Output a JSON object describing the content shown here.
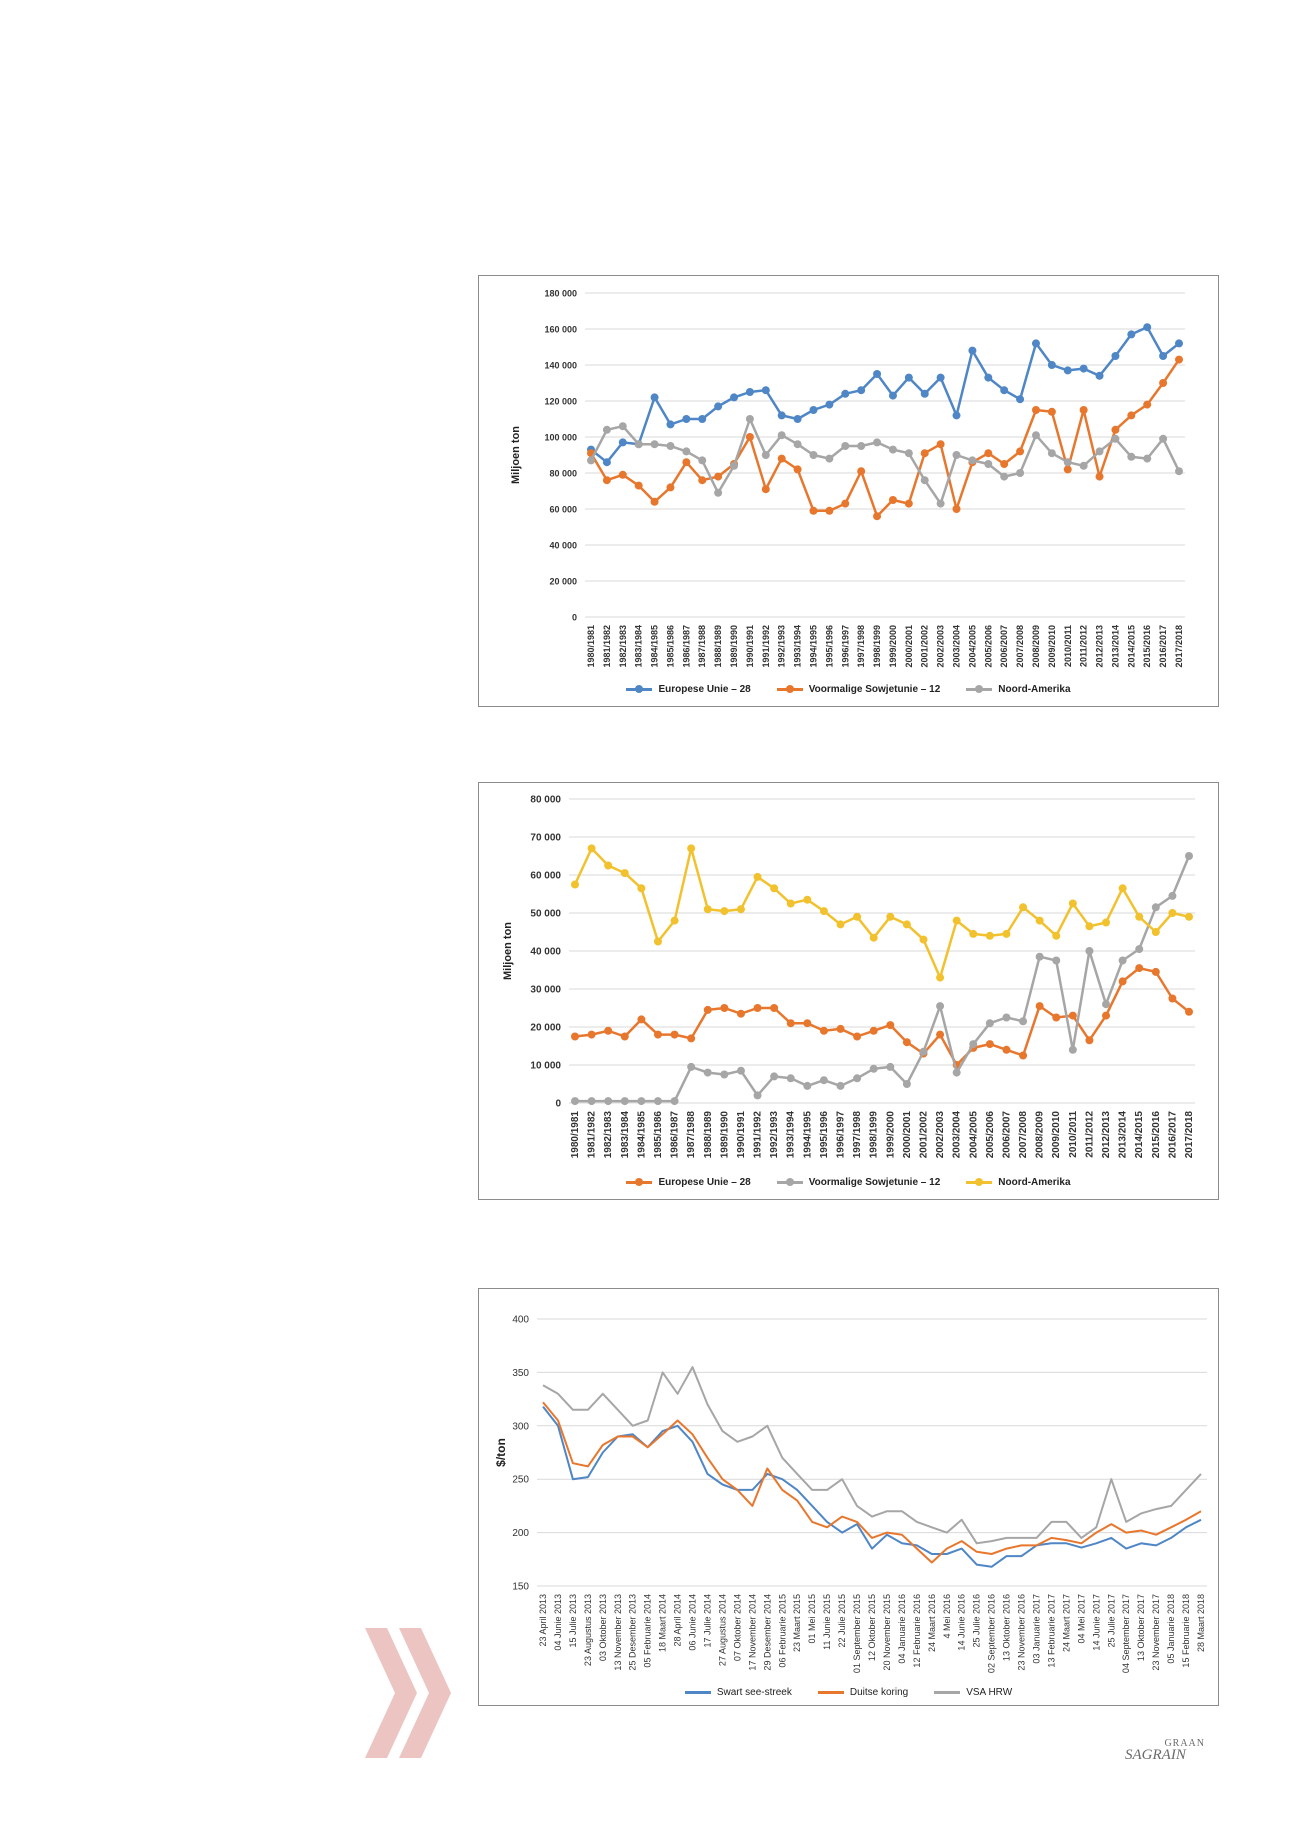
{
  "colors": {
    "blue": "#4f86c6",
    "orange": "#e8772e",
    "gray": "#a6a6a6",
    "yellow": "#f2c12e",
    "grid": "#d9d9d9",
    "chevron": "#ecc5c3"
  },
  "logo": {
    "top": "GRAAN",
    "bottom": "SAGRAIN"
  },
  "chart_data": [
    {
      "type": "line",
      "ylabel": "Miljoen ton",
      "ylim": [
        0,
        180000
      ],
      "yticks": [
        "0",
        "20 000",
        "40 000",
        "60 000",
        "80 000",
        "100 000",
        "120 000",
        "140 000",
        "160 000",
        "180 000"
      ],
      "grid": true,
      "legend_position": "bottom",
      "categories": [
        "1980/1981",
        "1981/1982",
        "1982/1983",
        "1983/1984",
        "1984/1985",
        "1985/1986",
        "1986/1987",
        "1987/1988",
        "1988/1989",
        "1989/1990",
        "1990/1991",
        "1991/1992",
        "1992/1993",
        "1993/1994",
        "1994/1995",
        "1995/1996",
        "1996/1997",
        "1997/1998",
        "1998/1999",
        "1999/2000",
        "2000/2001",
        "2001/2002",
        "2002/2003",
        "2003/2004",
        "2004/2005",
        "2005/2006",
        "2006/2007",
        "2007/2008",
        "2008/2009",
        "2009/2010",
        "2010/2011",
        "2011/2012",
        "2012/2013",
        "2013/2014",
        "2014/2015",
        "2015/2016",
        "2016/2017",
        "2017/2018"
      ],
      "series": [
        {
          "name": "Europese Unie – 28",
          "color": "blue",
          "values": [
            93000,
            86000,
            97000,
            96000,
            122000,
            107000,
            110000,
            110000,
            117000,
            122000,
            125000,
            126000,
            112000,
            110000,
            115000,
            118000,
            124000,
            126000,
            135000,
            123000,
            133000,
            124000,
            133000,
            112000,
            148000,
            133000,
            126000,
            121000,
            152000,
            140000,
            137000,
            138000,
            134000,
            145000,
            157000,
            161000,
            145000,
            152000
          ]
        },
        {
          "name": "Voormalige Sowjetunie – 12",
          "color": "orange",
          "values": [
            91000,
            76000,
            79000,
            73000,
            64000,
            72000,
            86000,
            76000,
            78000,
            85000,
            100000,
            71000,
            88000,
            82000,
            59000,
            59000,
            63000,
            81000,
            56000,
            65000,
            63000,
            91000,
            96000,
            60000,
            86000,
            91000,
            85000,
            92000,
            115000,
            114000,
            82000,
            115000,
            78000,
            104000,
            112000,
            118000,
            130000,
            143000
          ]
        },
        {
          "name": "Noord-Amerika",
          "color": "gray",
          "values": [
            87000,
            104000,
            106000,
            96000,
            96000,
            95000,
            92000,
            87000,
            69000,
            84000,
            110000,
            90000,
            101000,
            96000,
            90000,
            88000,
            95000,
            95000,
            97000,
            93000,
            91000,
            76000,
            63000,
            90000,
            87000,
            85000,
            78000,
            80000,
            101000,
            91000,
            86000,
            84000,
            92000,
            99000,
            89000,
            88000,
            99000,
            81000
          ]
        }
      ]
    },
    {
      "type": "line",
      "ylabel": "Miljoen ton",
      "ylim": [
        0,
        80000
      ],
      "yticks": [
        "0",
        "10 000",
        "20 000",
        "30 000",
        "40 000",
        "50 000",
        "60 000",
        "70 000",
        "80 000"
      ],
      "grid": true,
      "legend_position": "bottom",
      "categories": [
        "1980/1981",
        "1981/1982",
        "1982/1983",
        "1983/1984",
        "1984/1985",
        "1985/1986",
        "1986/1987",
        "1987/1988",
        "1988/1989",
        "1989/1990",
        "1990/1991",
        "1991/1992",
        "1992/1993",
        "1993/1994",
        "1994/1995",
        "1995/1996",
        "1996/1997",
        "1997/1998",
        "1998/1999",
        "1999/2000",
        "2000/2001",
        "2001/2002",
        "2002/2003",
        "2003/2004",
        "2004/2005",
        "2005/2006",
        "2006/2007",
        "2007/2008",
        "2008/2009",
        "2009/2010",
        "2010/2011",
        "2011/2012",
        "2012/2013",
        "2013/2014",
        "2014/2015",
        "2015/2016",
        "2016/2017",
        "2017/2018"
      ],
      "series": [
        {
          "name": "Europese Unie – 28",
          "color": "orange",
          "values": [
            17500,
            18000,
            19000,
            17500,
            22000,
            18000,
            18000,
            17000,
            24500,
            25000,
            23500,
            25000,
            25000,
            21000,
            21000,
            19000,
            19500,
            17500,
            19000,
            20500,
            16000,
            13000,
            18000,
            10000,
            14500,
            15500,
            14000,
            12500,
            25500,
            22500,
            23000,
            16500,
            23000,
            32000,
            35500,
            34500,
            27500,
            24000
          ]
        },
        {
          "name": "Voormalige Sowjetunie – 12",
          "color": "gray",
          "values": [
            500,
            500,
            500,
            500,
            500,
            500,
            500,
            9500,
            8000,
            7500,
            8500,
            2000,
            7000,
            6500,
            4500,
            6000,
            4500,
            6500,
            9000,
            9500,
            5000,
            13500,
            25500,
            8000,
            15500,
            21000,
            22500,
            21500,
            38500,
            37500,
            14000,
            40000,
            26000,
            37500,
            40500,
            51500,
            54500,
            65000
          ]
        },
        {
          "name": "Noord-Amerika",
          "color": "yellow",
          "values": [
            57500,
            67000,
            62500,
            60500,
            56500,
            42500,
            48000,
            67000,
            51000,
            50500,
            51000,
            59500,
            56500,
            52500,
            53500,
            50500,
            47000,
            49000,
            43500,
            49000,
            47000,
            43000,
            33000,
            48000,
            44500,
            44000,
            44500,
            51500,
            48000,
            44000,
            52500,
            46500,
            47500,
            56500,
            49000,
            45000,
            50000,
            49000
          ]
        }
      ]
    },
    {
      "type": "line",
      "ylabel": "$/ton",
      "ylim": [
        150,
        400
      ],
      "yticks": [
        "150",
        "200",
        "250",
        "300",
        "350",
        "400"
      ],
      "grid": true,
      "legend_position": "bottom",
      "categories": [
        "23 April 2013",
        "04 Junie 2013",
        "15 Julie 2013",
        "23 Augustus 2013",
        "03 Oktober 2013",
        "13 November 2013",
        "25 Desember 2013",
        "05 Februarie 2014",
        "18 Maart 2014",
        "28 April 2014",
        "06 Junie 2014",
        "17 Julie 2014",
        "27 Augustus 2014",
        "07 Oktober 2014",
        "17 November 2014",
        "29 Desember 2014",
        "06 Februarie 2015",
        "23 Maart 2015",
        "01 Mei 2015",
        "11 Junie 2015",
        "22 Julie 2015",
        "01 September 2015",
        "12 Oktober 2015",
        "20 November 2015",
        "04 Januarie 2016",
        "12 Februarie 2016",
        "24 Maart 2016",
        "4 Mei 2016",
        "14 Junie 2016",
        "25 Julie 2016",
        "02 September 2016",
        "13 Oktober 2016",
        "23 November 2016",
        "03 Januarie 2017",
        "13 Februarie 2017",
        "24 Maart 2017",
        "04 Mei 2017",
        "14 Junie 2017",
        "25 Julie 2017",
        "04 September 2017",
        "13 Oktober 2017",
        "23 November 2017",
        "05 Januarie 2018",
        "15 Februarie 2018",
        "28 Maart 2018"
      ],
      "series": [
        {
          "name": "Swart see-streek",
          "color": "blue",
          "values": [
            318,
            300,
            250,
            252,
            275,
            290,
            292,
            280,
            295,
            300,
            285,
            255,
            245,
            240,
            240,
            255,
            250,
            240,
            225,
            210,
            200,
            208,
            185,
            198,
            190,
            188,
            180,
            180,
            185,
            170,
            168,
            178,
            178,
            188,
            190,
            190,
            186,
            190,
            195,
            185,
            190,
            188,
            195,
            205,
            212
          ]
        },
        {
          "name": "Duitse koring",
          "color": "orange",
          "values": [
            322,
            305,
            265,
            262,
            282,
            290,
            290,
            280,
            292,
            305,
            292,
            270,
            250,
            240,
            225,
            260,
            240,
            230,
            210,
            205,
            215,
            210,
            195,
            200,
            198,
            185,
            172,
            185,
            192,
            182,
            180,
            185,
            188,
            188,
            195,
            193,
            190,
            200,
            208,
            200,
            202,
            198,
            205,
            212,
            220
          ]
        },
        {
          "name": "VSA HRW",
          "color": "gray",
          "values": [
            338,
            330,
            315,
            315,
            330,
            315,
            300,
            305,
            350,
            330,
            355,
            320,
            295,
            285,
            290,
            300,
            270,
            255,
            240,
            240,
            250,
            225,
            215,
            220,
            220,
            210,
            205,
            200,
            212,
            190,
            192,
            195,
            195,
            195,
            210,
            210,
            195,
            205,
            250,
            210,
            218,
            222,
            225,
            240,
            255
          ]
        }
      ]
    }
  ]
}
